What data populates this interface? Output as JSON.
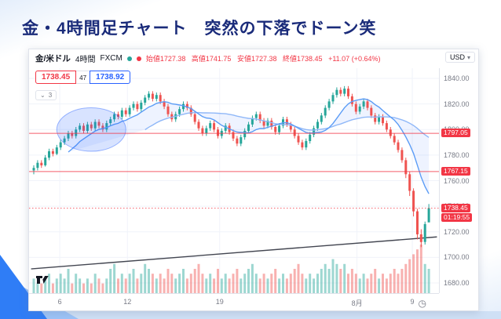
{
  "slide": {
    "title": "金・4時間足チャート　突然の下落でドーン笑"
  },
  "chart": {
    "symbol": "金/米ドル",
    "interval": "4時間",
    "exchange": "FXCM",
    "ohlc": {
      "open": "始値1727.38",
      "high": "高値1741.75",
      "low": "安値1727.38",
      "close": "終値1738.45",
      "change": "+11.07 (+0.64%)"
    },
    "order_panel": {
      "sell": "1738.45",
      "spread": "47",
      "buy": "1738.92"
    },
    "collapse_count": "3",
    "currency": "USD",
    "price_axis": [
      "1840.00",
      "1820.00",
      "1800.00",
      "1780.00",
      "1760.00",
      "1740.00",
      "1720.00",
      "1700.00",
      "1680.00"
    ],
    "time_axis": [
      {
        "label": "6",
        "f": 0.075
      },
      {
        "label": "12",
        "f": 0.24
      },
      {
        "label": "19",
        "f": 0.465
      },
      {
        "label": "8月",
        "f": 0.8
      },
      {
        "label": "9",
        "f": 0.935
      }
    ],
    "clock_icon": "◷",
    "caret_icon": "▾",
    "collapse_icon": "⌄"
  },
  "chart_data": {
    "type": "candlestick",
    "title": "金/米ドル 4時間 FXCM",
    "price_range": [
      1672,
      1848
    ],
    "levels": [
      {
        "label": "1797.05",
        "price": 1797.05,
        "style": "solid"
      },
      {
        "label": "1767.15",
        "price": 1767.15,
        "style": "solid"
      },
      {
        "label": "1738.45",
        "price": 1738.45,
        "style": "dotted",
        "countdown": "01:19:55"
      }
    ],
    "ellipse": {
      "index": 15,
      "price": 1800,
      "rx_candles": 9,
      "ry_price": 17
    },
    "trendline": {
      "f1": 0.005,
      "p1": 1691,
      "f2": 0.995,
      "p2": 1716
    },
    "ma_periods": [
      10,
      30
    ],
    "colors": {
      "up": "#26a69a",
      "down": "#ef5350",
      "ma_fast": "#5b9cf6",
      "ma_slow": "#90b8f8",
      "band_fill": "rgba(41,98,255,0.08)",
      "level": "#f23645",
      "grid": "#f0f3fa",
      "trend": "#434651",
      "ellipse_fill": "rgba(41,98,255,0.18)",
      "ellipse_stroke": "rgba(41,98,255,0.45)"
    },
    "candles": [
      [
        1768,
        1772,
        1765,
        1770
      ],
      [
        1770,
        1776,
        1768,
        1774
      ],
      [
        1774,
        1776,
        1770,
        1772
      ],
      [
        1772,
        1780,
        1771,
        1778
      ],
      [
        1778,
        1785,
        1776,
        1783
      ],
      [
        1783,
        1785,
        1779,
        1781
      ],
      [
        1781,
        1788,
        1780,
        1786
      ],
      [
        1786,
        1792,
        1784,
        1790
      ],
      [
        1790,
        1795,
        1788,
        1793
      ],
      [
        1793,
        1799,
        1791,
        1797
      ],
      [
        1797,
        1799,
        1793,
        1795
      ],
      [
        1795,
        1802,
        1793,
        1800
      ],
      [
        1800,
        1805,
        1798,
        1803
      ],
      [
        1803,
        1805,
        1797,
        1799
      ],
      [
        1799,
        1806,
        1797,
        1804
      ],
      [
        1804,
        1806,
        1799,
        1801
      ],
      [
        1801,
        1808,
        1799,
        1806
      ],
      [
        1806,
        1808,
        1801,
        1803
      ],
      [
        1803,
        1805,
        1798,
        1800
      ],
      [
        1800,
        1807,
        1798,
        1805
      ],
      [
        1805,
        1810,
        1803,
        1808
      ],
      [
        1808,
        1814,
        1806,
        1812
      ],
      [
        1812,
        1814,
        1808,
        1810
      ],
      [
        1810,
        1817,
        1808,
        1815
      ],
      [
        1815,
        1817,
        1810,
        1812
      ],
      [
        1812,
        1819,
        1810,
        1817
      ],
      [
        1817,
        1822,
        1815,
        1820
      ],
      [
        1820,
        1822,
        1814,
        1816
      ],
      [
        1816,
        1823,
        1814,
        1821
      ],
      [
        1821,
        1827,
        1819,
        1825
      ],
      [
        1825,
        1830,
        1823,
        1828
      ],
      [
        1828,
        1830,
        1822,
        1824
      ],
      [
        1824,
        1829,
        1822,
        1827
      ],
      [
        1827,
        1829,
        1820,
        1822
      ],
      [
        1822,
        1824,
        1816,
        1818
      ],
      [
        1818,
        1820,
        1810,
        1812
      ],
      [
        1812,
        1814,
        1806,
        1808
      ],
      [
        1808,
        1814,
        1806,
        1812
      ],
      [
        1812,
        1818,
        1810,
        1816
      ],
      [
        1816,
        1822,
        1814,
        1820
      ],
      [
        1820,
        1822,
        1815,
        1817
      ],
      [
        1817,
        1819,
        1810,
        1812
      ],
      [
        1812,
        1814,
        1804,
        1806
      ],
      [
        1806,
        1808,
        1799,
        1801
      ],
      [
        1801,
        1803,
        1795,
        1797
      ],
      [
        1797,
        1803,
        1795,
        1801
      ],
      [
        1801,
        1807,
        1799,
        1805
      ],
      [
        1805,
        1807,
        1798,
        1800
      ],
      [
        1800,
        1802,
        1793,
        1795
      ],
      [
        1795,
        1801,
        1793,
        1799
      ],
      [
        1799,
        1805,
        1797,
        1803
      ],
      [
        1803,
        1805,
        1796,
        1798
      ],
      [
        1798,
        1800,
        1791,
        1793
      ],
      [
        1793,
        1795,
        1787,
        1789
      ],
      [
        1789,
        1796,
        1787,
        1794
      ],
      [
        1794,
        1801,
        1792,
        1799
      ],
      [
        1799,
        1806,
        1797,
        1804
      ],
      [
        1804,
        1811,
        1802,
        1809
      ],
      [
        1809,
        1814,
        1807,
        1812
      ],
      [
        1812,
        1814,
        1805,
        1807
      ],
      [
        1807,
        1809,
        1801,
        1803
      ],
      [
        1803,
        1809,
        1801,
        1807
      ],
      [
        1807,
        1809,
        1800,
        1802
      ],
      [
        1802,
        1804,
        1796,
        1798
      ],
      [
        1798,
        1805,
        1796,
        1803
      ],
      [
        1803,
        1810,
        1801,
        1808
      ],
      [
        1808,
        1810,
        1802,
        1804
      ],
      [
        1804,
        1806,
        1798,
        1800
      ],
      [
        1800,
        1802,
        1793,
        1795
      ],
      [
        1795,
        1797,
        1788,
        1790
      ],
      [
        1790,
        1792,
        1784,
        1786
      ],
      [
        1786,
        1793,
        1784,
        1791
      ],
      [
        1791,
        1798,
        1789,
        1796
      ],
      [
        1796,
        1803,
        1794,
        1801
      ],
      [
        1801,
        1808,
        1799,
        1806
      ],
      [
        1806,
        1813,
        1804,
        1811
      ],
      [
        1811,
        1819,
        1809,
        1817
      ],
      [
        1817,
        1824,
        1815,
        1822
      ],
      [
        1822,
        1829,
        1820,
        1827
      ],
      [
        1827,
        1833,
        1825,
        1831
      ],
      [
        1831,
        1833,
        1826,
        1828
      ],
      [
        1828,
        1834,
        1826,
        1832
      ],
      [
        1832,
        1834,
        1824,
        1826
      ],
      [
        1826,
        1828,
        1818,
        1820
      ],
      [
        1820,
        1822,
        1812,
        1814
      ],
      [
        1814,
        1820,
        1812,
        1818
      ],
      [
        1818,
        1824,
        1816,
        1822
      ],
      [
        1822,
        1824,
        1815,
        1817
      ],
      [
        1817,
        1819,
        1809,
        1811
      ],
      [
        1811,
        1813,
        1804,
        1806
      ],
      [
        1806,
        1812,
        1804,
        1810
      ],
      [
        1810,
        1812,
        1803,
        1805
      ],
      [
        1805,
        1807,
        1798,
        1800
      ],
      [
        1800,
        1802,
        1793,
        1795
      ],
      [
        1795,
        1797,
        1788,
        1790
      ],
      [
        1790,
        1792,
        1782,
        1784
      ],
      [
        1784,
        1786,
        1774,
        1776
      ],
      [
        1776,
        1778,
        1762,
        1765
      ],
      [
        1765,
        1767,
        1748,
        1752
      ],
      [
        1752,
        1754,
        1732,
        1736
      ],
      [
        1736,
        1738,
        1714,
        1718
      ],
      [
        1718,
        1722,
        1708,
        1712
      ],
      [
        1712,
        1728,
        1710,
        1726
      ],
      [
        1727.38,
        1741.75,
        1727.38,
        1738.45
      ]
    ],
    "volumes": [
      3,
      2,
      2,
      3,
      4,
      2,
      3,
      4,
      3,
      5,
      2,
      4,
      3,
      2,
      3,
      2,
      4,
      3,
      2,
      3,
      5,
      6,
      3,
      4,
      3,
      4,
      5,
      3,
      4,
      6,
      5,
      4,
      3,
      4,
      3,
      5,
      4,
      3,
      4,
      5,
      3,
      4,
      5,
      6,
      4,
      3,
      4,
      3,
      5,
      3,
      4,
      3,
      4,
      5,
      3,
      4,
      5,
      6,
      4,
      3,
      4,
      3,
      4,
      5,
      3,
      4,
      3,
      4,
      5,
      6,
      4,
      3,
      4,
      3,
      4,
      5,
      6,
      5,
      7,
      6,
      5,
      6,
      4,
      5,
      4,
      3,
      4,
      3,
      4,
      5,
      3,
      4,
      3,
      4,
      5,
      4,
      5,
      6,
      7,
      8,
      9,
      10,
      6,
      5
    ]
  }
}
